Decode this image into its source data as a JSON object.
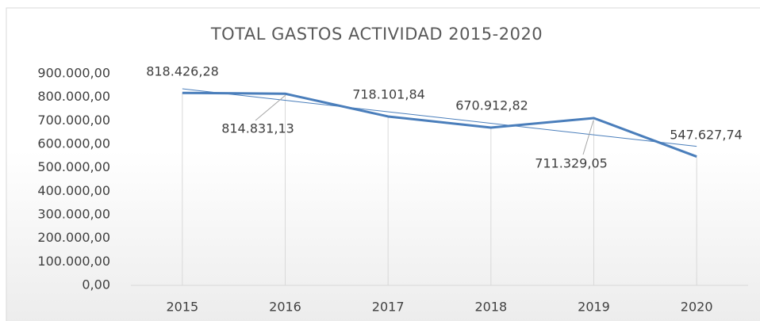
{
  "chart_data": {
    "type": "line",
    "title": "TOTAL GASTOS ACTIVIDAD 2015-2020",
    "categories": [
      "2015",
      "2016",
      "2017",
      "2018",
      "2019",
      "2020"
    ],
    "series": [
      {
        "name": "TOTAL GASTOS ACTIVIDAD 2015-2020",
        "color": "#4a7ebb",
        "values": [
          818426.28,
          814831.13,
          718101.84,
          670912.82,
          711329.05,
          547627.74
        ],
        "value_labels": [
          "818.426,28",
          "814.831,13",
          "718.101,84",
          "670.912,82",
          "711.329,05",
          "547.627,74"
        ]
      }
    ],
    "ylim": [
      0,
      900000
    ],
    "yticks": [
      {
        "value": 0,
        "label": "0,00"
      },
      {
        "value": 100000,
        "label": "100.000,00"
      },
      {
        "value": 200000,
        "label": "200.000,00"
      },
      {
        "value": 300000,
        "label": "300.000,00"
      },
      {
        "value": 400000,
        "label": "400.000,00"
      },
      {
        "value": 500000,
        "label": "500.000,00"
      },
      {
        "value": 600000,
        "label": "600.000,00"
      },
      {
        "value": 700000,
        "label": "700.000,00"
      },
      {
        "value": 800000,
        "label": "800.000,00"
      },
      {
        "value": 900000,
        "label": "900.000,00"
      }
    ],
    "trendline": true,
    "drop_lines": true
  }
}
